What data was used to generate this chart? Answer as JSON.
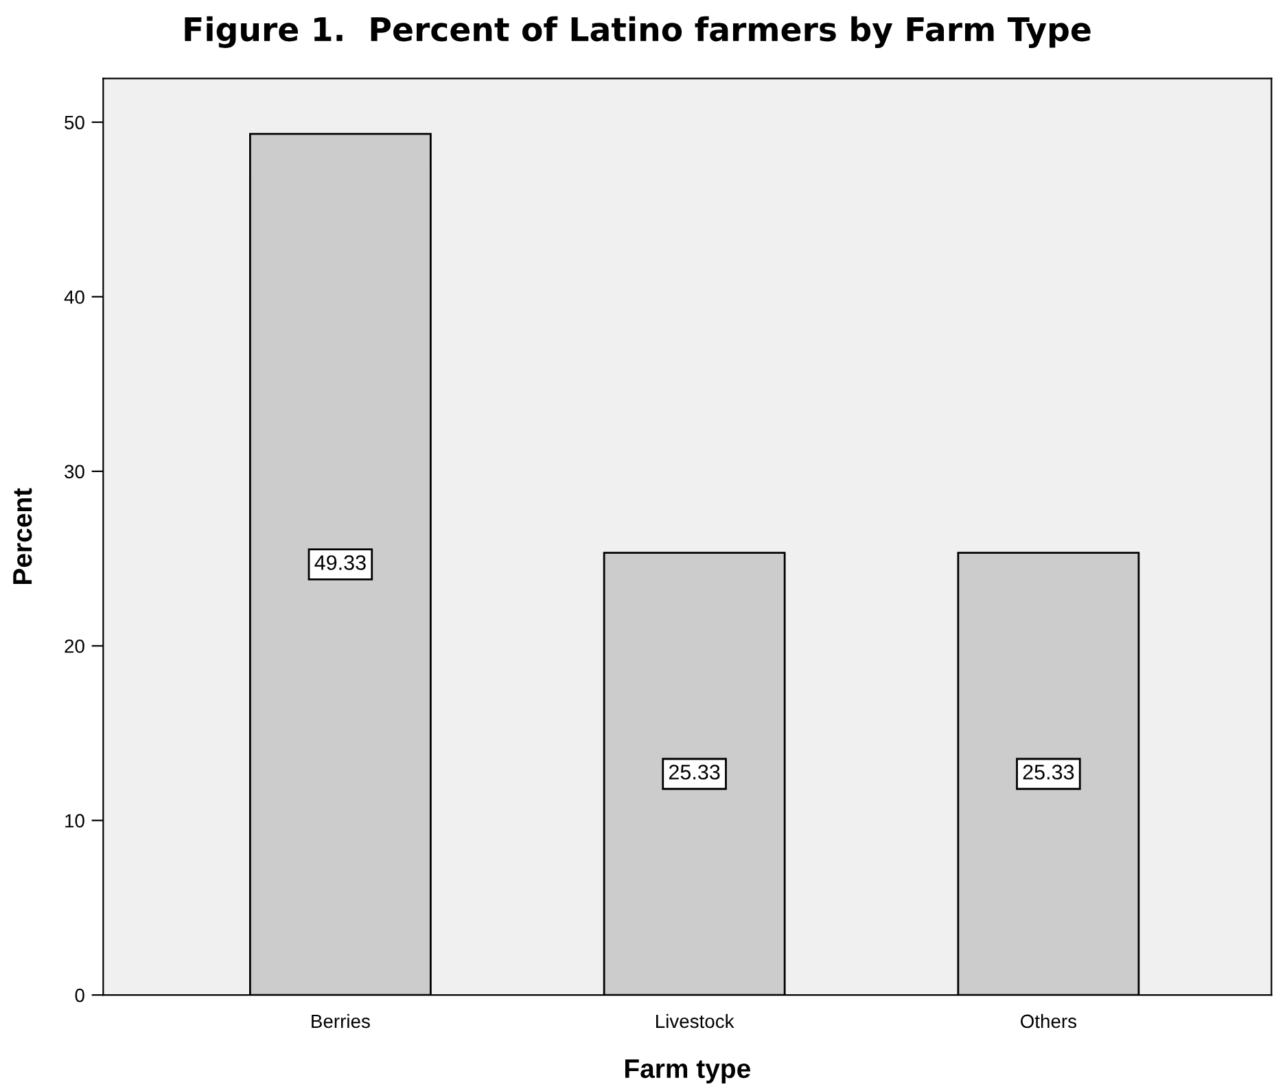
{
  "chart_data": {
    "type": "bar",
    "title": "Figure 1.  Percent of Latino farmers by Farm Type",
    "xlabel": "Farm type",
    "ylabel": "Percent",
    "categories": [
      "Berries",
      "Livestock",
      "Others"
    ],
    "values": [
      49.33,
      25.33,
      25.33
    ],
    "color": "#cccccc",
    "ylim": [
      0,
      52.5
    ],
    "yticks": [
      0,
      10,
      20,
      30,
      40,
      50
    ],
    "grid": false,
    "data_labels": true
  }
}
